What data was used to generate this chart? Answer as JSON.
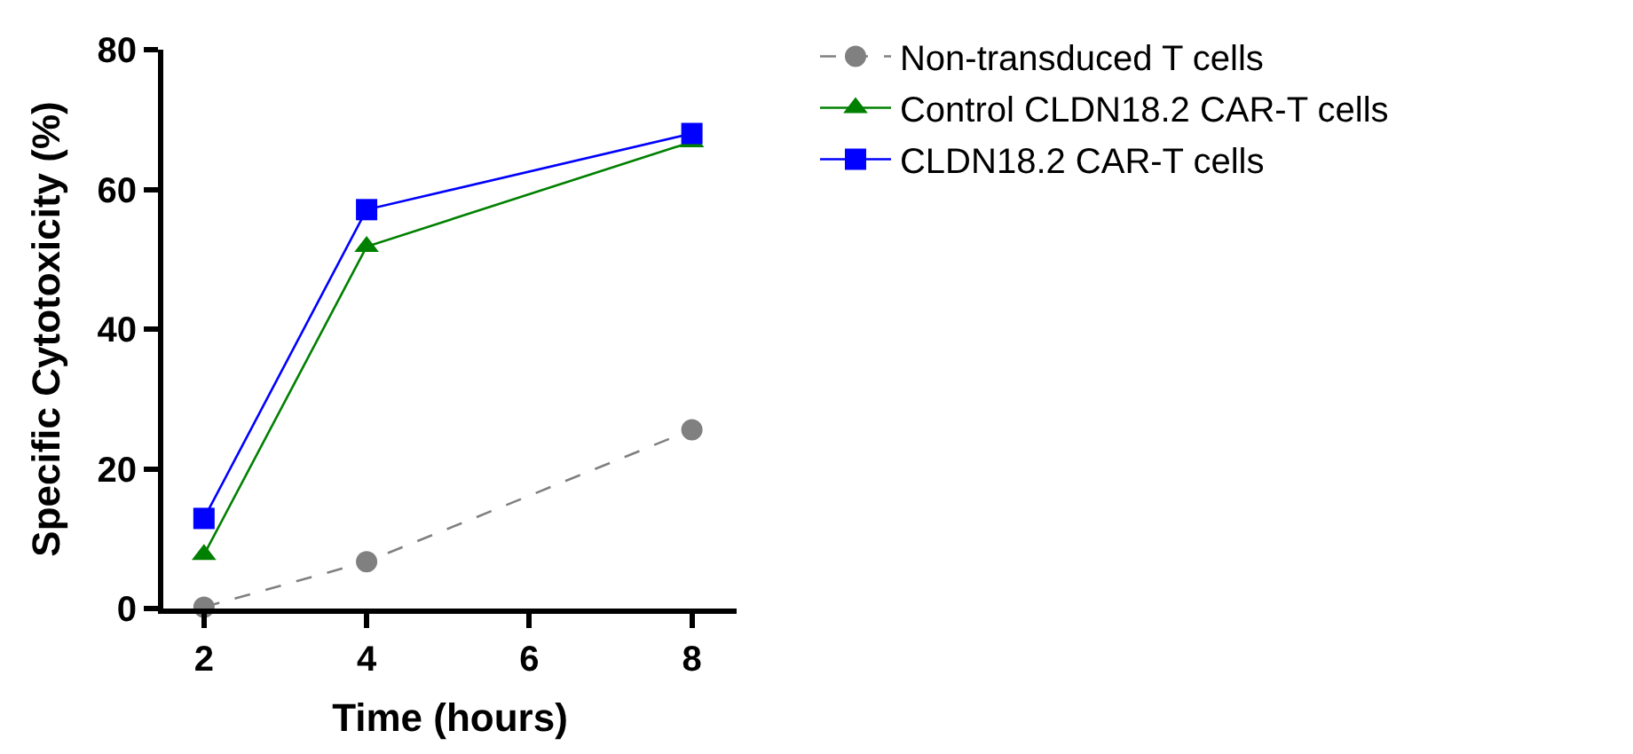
{
  "chart_data": {
    "type": "line",
    "xlabel": "Time (hours)",
    "ylabel": "Specific Cytotoxicity (%)",
    "x": [
      2,
      4,
      8
    ],
    "xlim": [
      1.5,
      8.55
    ],
    "xticks": [
      2,
      4,
      6,
      8
    ],
    "ylim": [
      0,
      80
    ],
    "yticks": [
      0,
      20,
      40,
      60,
      80
    ],
    "legend": "top right",
    "series": [
      {
        "name": "Non-transduced T cells",
        "color": "#808080",
        "values": [
          0.2,
          6.7,
          25.6
        ],
        "marker": "circle",
        "line_style": "dashed"
      },
      {
        "name": "Control CLDN18.2 CAR-T cells",
        "color": "#008000",
        "values": [
          7.7,
          51.8,
          66.8
        ],
        "marker": "triangle",
        "line_style": "solid"
      },
      {
        "name": "CLDN18.2 CAR-T cells",
        "color": "#0000ff",
        "values": [
          12.9,
          57.1,
          68.0
        ],
        "marker": "square",
        "line_style": "solid"
      }
    ]
  }
}
